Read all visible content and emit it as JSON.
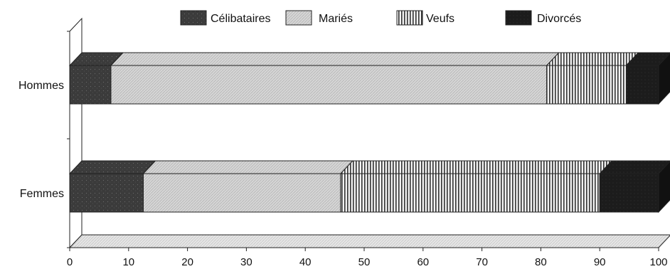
{
  "chart_data": {
    "type": "bar",
    "orientation": "horizontal",
    "stacked": true,
    "three_d": true,
    "categories": [
      "Hommes",
      "Femmes"
    ],
    "series": [
      {
        "name": "Célibataires",
        "values": [
          7,
          12.5
        ],
        "color": "#3a3a3a",
        "pattern": "dark-speckle"
      },
      {
        "name": "Mariés",
        "values": [
          74,
          33.5
        ],
        "color": "#cfcfcf",
        "pattern": "light-diagonal"
      },
      {
        "name": "Veufs",
        "values": [
          13.5,
          44
        ],
        "color": "#e8e8e8",
        "pattern": "vertical-stripes"
      },
      {
        "name": "Divorcés",
        "values": [
          5.5,
          10
        ],
        "color": "#1a1a1a",
        "pattern": "dark"
      }
    ],
    "xlim": [
      0,
      100
    ],
    "xticks": [
      "0",
      "10",
      "20",
      "30",
      "40",
      "50",
      "60",
      "70",
      "80",
      "90",
      "100"
    ],
    "legend_position": "top",
    "grid": false
  }
}
